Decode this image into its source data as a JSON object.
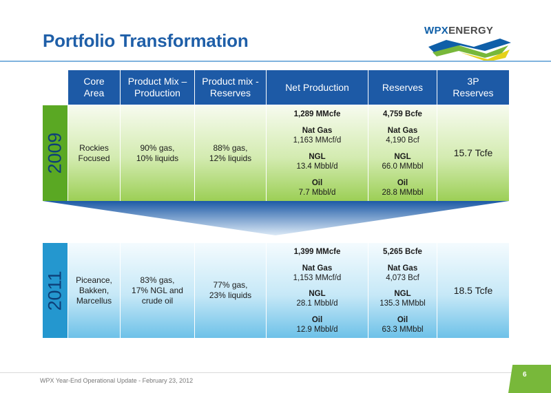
{
  "slide": {
    "title": "Portfolio Transformation",
    "footer": "WPX Year-End Operational Update - February 23, 2012",
    "page_number": "6"
  },
  "logo": {
    "part1": "WPX",
    "part2": "ENERGY",
    "colors": [
      "#0f5fa8",
      "#78b83a",
      "#e5d21a"
    ]
  },
  "table": {
    "headers": [
      "Core\nArea",
      "Product Mix –\nProduction",
      "Product mix -\nReserves",
      "Net Production",
      "Reserves",
      "3P\nReserves"
    ],
    "rows": [
      {
        "year": "2009",
        "core_area": "Rockies\nFocused",
        "mix_production": "90% gas,\n10% liquids",
        "mix_reserves": "88% gas,\n12% liquids",
        "net_production": {
          "total": "1,289 MMcfe",
          "gas_label": "Nat Gas",
          "gas": "1,163 MMcf/d",
          "ngl_label": "NGL",
          "ngl": "13.4 Mbbl/d",
          "oil_label": "Oil",
          "oil": "7.7 Mbbl/d"
        },
        "reserves": {
          "total": "4,759 Bcfe",
          "gas_label": "Nat Gas",
          "gas": "4,190 Bcf",
          "ngl_label": "NGL",
          "ngl": "66.0 MMbbl",
          "oil_label": "Oil",
          "oil": "28.8 MMbbl"
        },
        "reserves_3p": "15.7 Tcfe"
      },
      {
        "year": "2011",
        "core_area": "Piceance,\nBakken,\nMarcellus",
        "mix_production": "83% gas,\n17% NGL and\ncrude oil",
        "mix_reserves": "77% gas,\n23% liquids",
        "net_production": {
          "total": "1,399 MMcfe",
          "gas_label": "Nat Gas",
          "gas": "1,153 MMcf/d",
          "ngl_label": "NGL",
          "ngl": "28.1 Mbbl/d",
          "oil_label": "Oil",
          "oil": "12.9 Mbbl/d"
        },
        "reserves": {
          "total": "5,265 Bcfe",
          "gas_label": "Nat Gas",
          "gas": "4,073 Bcf",
          "ngl_label": "NGL",
          "ngl": "135.3 MMbbl",
          "oil_label": "Oil",
          "oil": "63.3 MMbbl"
        },
        "reserves_3p": "18.5 Tcfe"
      }
    ]
  }
}
